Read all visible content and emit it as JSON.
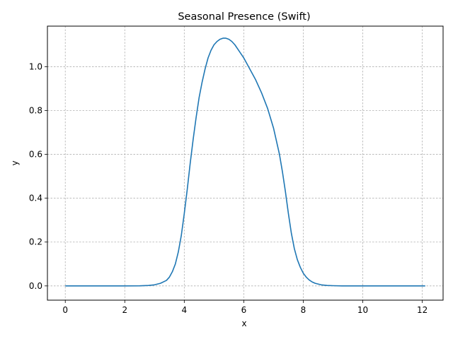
{
  "chart_data": {
    "type": "line",
    "title": "Seasonal Presence (Swift)",
    "xlabel": "x",
    "ylabel": "y",
    "xlim": [
      -0.6,
      12.7
    ],
    "ylim": [
      -0.065,
      1.185
    ],
    "xticks": [
      0,
      2,
      4,
      6,
      8,
      10,
      12
    ],
    "xtick_labels": [
      "0",
      "2",
      "4",
      "6",
      "8",
      "10",
      "12"
    ],
    "yticks": [
      0.0,
      0.2,
      0.4,
      0.6,
      0.8,
      1.0
    ],
    "ytick_labels": [
      "0.0",
      "0.2",
      "0.4",
      "0.6",
      "0.8",
      "1.0"
    ],
    "grid": true,
    "series": [
      {
        "color": "#1f77b4",
        "x": [
          0,
          0.5,
          1,
          1.5,
          2,
          2.5,
          2.8,
          3.0,
          3.2,
          3.4,
          3.5,
          3.6,
          3.7,
          3.8,
          3.9,
          4.0,
          4.1,
          4.2,
          4.3,
          4.4,
          4.5,
          4.6,
          4.7,
          4.8,
          4.9,
          5.0,
          5.1,
          5.2,
          5.3,
          5.4,
          5.5,
          5.6,
          5.7,
          5.8,
          5.9,
          6.0,
          6.2,
          6.4,
          6.6,
          6.8,
          7.0,
          7.2,
          7.3,
          7.4,
          7.5,
          7.6,
          7.7,
          7.8,
          7.9,
          8.0,
          8.1,
          8.2,
          8.3,
          8.4,
          8.6,
          8.8,
          9.0,
          9.3,
          9.6,
          10.0,
          11.0,
          12.1
        ],
        "y": [
          0,
          0,
          0,
          0,
          0,
          0.0005,
          0.002,
          0.005,
          0.012,
          0.025,
          0.04,
          0.065,
          0.1,
          0.155,
          0.23,
          0.33,
          0.44,
          0.56,
          0.67,
          0.77,
          0.86,
          0.93,
          0.99,
          1.04,
          1.075,
          1.1,
          1.115,
          1.125,
          1.13,
          1.13,
          1.125,
          1.115,
          1.1,
          1.08,
          1.06,
          1.04,
          0.99,
          0.94,
          0.88,
          0.81,
          0.72,
          0.6,
          0.52,
          0.43,
          0.33,
          0.24,
          0.17,
          0.12,
          0.085,
          0.058,
          0.04,
          0.027,
          0.018,
          0.012,
          0.005,
          0.002,
          0.001,
          0,
          0,
          0,
          0,
          0
        ]
      }
    ]
  }
}
